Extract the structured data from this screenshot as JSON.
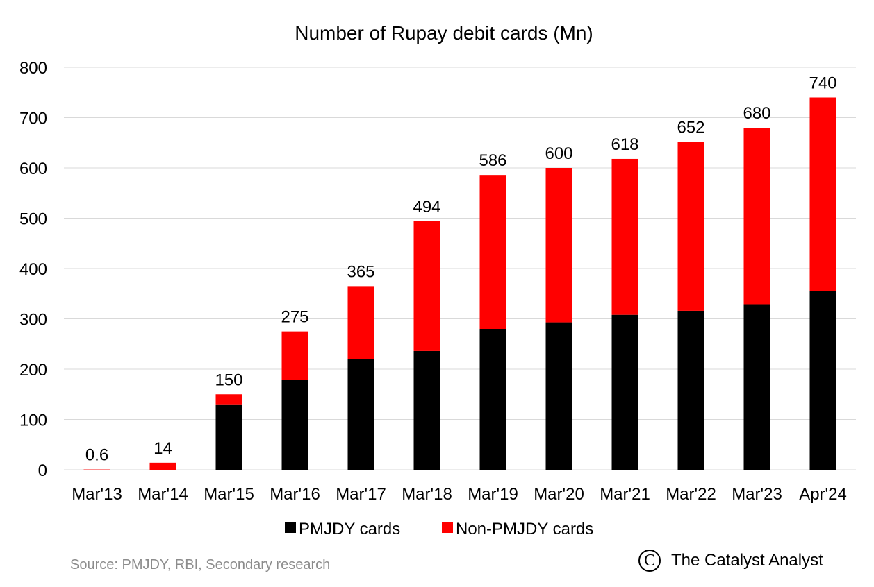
{
  "chart_data": {
    "type": "bar",
    "stacked": true,
    "title": "Number of Rupay debit cards (Mn)",
    "categories": [
      "Mar'13",
      "Mar'14",
      "Mar'15",
      "Mar'16",
      "Mar'17",
      "Mar'18",
      "Mar'19",
      "Mar'20",
      "Mar'21",
      "Mar'22",
      "Mar'23",
      "Apr'24"
    ],
    "series": [
      {
        "name": "PMJDY cards",
        "color": "#000000",
        "values": [
          0,
          0,
          130,
          178,
          220,
          236,
          280,
          293,
          308,
          316,
          329,
          355
        ]
      },
      {
        "name": "Non-PMJDY cards",
        "color": "#ff0000",
        "values": [
          0.6,
          14,
          20,
          97,
          145,
          258,
          306,
          307,
          310,
          336,
          351,
          385
        ]
      }
    ],
    "totals": [
      "0.6",
      "14",
      "150",
      "275",
      "365",
      "494",
      "586",
      "600",
      "618",
      "652",
      "680",
      "740"
    ],
    "ylim": [
      0,
      800
    ],
    "yticks": [
      0,
      100,
      200,
      300,
      400,
      500,
      600,
      700,
      800
    ],
    "grid": true,
    "legend": "bottom"
  },
  "footer": {
    "source": "Source: PMJDY, RBI, Secondary research",
    "brand_icon": "copyright-icon",
    "brand_glyph": "C",
    "brand_name": "The Catalyst Analyst"
  }
}
